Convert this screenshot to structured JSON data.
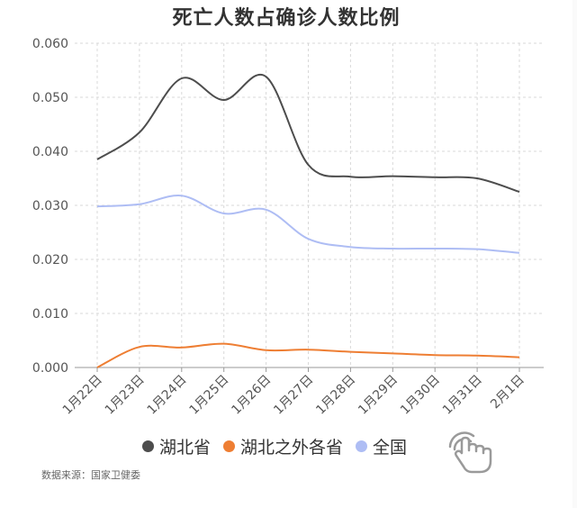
{
  "source_note": "数据来源：国家卫健委",
  "chart_data": {
    "type": "line",
    "title": "死亡人数占确诊人数比例",
    "xlabel": "",
    "ylabel": "",
    "categories": [
      "1月22日",
      "1月23日",
      "1月24日",
      "1月25日",
      "1月26日",
      "1月27日",
      "1月28日",
      "1月29日",
      "1月30日",
      "1月31日",
      "2月1日"
    ],
    "ylim": [
      0,
      0.06
    ],
    "yticks": [
      "0.000",
      "0.010",
      "0.020",
      "0.030",
      "0.040",
      "0.050",
      "0.060"
    ],
    "grid": true,
    "smooth": true,
    "legend_position": "bottom",
    "series": [
      {
        "name": "湖北省",
        "color": "#4d4d4d",
        "values": [
          0.0385,
          0.0435,
          0.0535,
          0.0495,
          0.0538,
          0.0375,
          0.0353,
          0.0354,
          0.0352,
          0.035,
          0.0325
        ]
      },
      {
        "name": "湖北之外各省",
        "color": "#ee7e33",
        "values": [
          0.0,
          0.0038,
          0.0037,
          0.0044,
          0.0032,
          0.0033,
          0.0029,
          0.0026,
          0.0023,
          0.0022,
          0.0019
        ]
      },
      {
        "name": "全国",
        "color": "#aebdf4",
        "values": [
          0.0298,
          0.0302,
          0.0318,
          0.0285,
          0.0292,
          0.0238,
          0.0223,
          0.022,
          0.022,
          0.0219,
          0.0212
        ]
      }
    ]
  },
  "icons": {
    "hand": "hand-pointer-icon"
  }
}
